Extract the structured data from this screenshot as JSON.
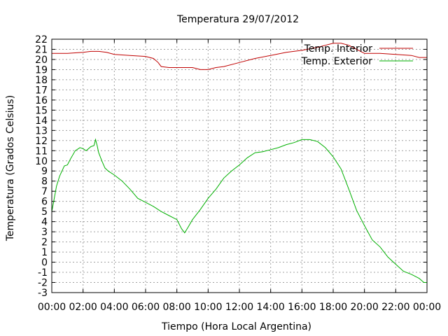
{
  "chart_data": {
    "type": "line",
    "title": "Temperatura 29/07/2012",
    "xlabel": "Tiempo (Hora Local Argentina)",
    "ylabel": "Temperatura (Grados Celsius)",
    "xlim": [
      0,
      24
    ],
    "ylim": [
      -3,
      22
    ],
    "x_ticks": [
      "00:00",
      "02:00",
      "04:00",
      "06:00",
      "08:00",
      "10:00",
      "12:00",
      "14:00",
      "16:00",
      "18:00",
      "20:00",
      "22:00",
      "00:00"
    ],
    "y_ticks": [
      -3,
      -2,
      -1,
      0,
      1,
      2,
      3,
      4,
      5,
      6,
      7,
      8,
      9,
      10,
      11,
      12,
      13,
      14,
      15,
      16,
      17,
      18,
      19,
      20,
      21,
      22
    ],
    "grid": true,
    "legend_position": "top-right",
    "series": [
      {
        "name": "Temp. Interior",
        "color": "#c00000",
        "x": [
          0,
          1,
          2,
          2.5,
          3,
          3.5,
          4,
          5,
          6,
          6.5,
          6.8,
          7,
          7.5,
          8,
          8.5,
          9,
          9.5,
          10,
          10.5,
          11,
          12,
          13,
          14,
          15,
          16,
          17,
          17.5,
          18,
          18.3,
          18.5,
          19,
          19.5,
          20,
          21,
          22,
          23,
          23.5,
          24
        ],
        "values": [
          20.6,
          20.6,
          20.7,
          20.8,
          20.8,
          20.7,
          20.5,
          20.4,
          20.3,
          20.1,
          19.7,
          19.3,
          19.2,
          19.2,
          19.2,
          19.2,
          19.0,
          19.0,
          19.2,
          19.3,
          19.7,
          20.1,
          20.4,
          20.7,
          20.9,
          21.2,
          21.4,
          21.6,
          21.6,
          21.6,
          21.4,
          21.0,
          20.6,
          20.6,
          20.5,
          20.4,
          20.2,
          20.2
        ]
      },
      {
        "name": "Temp. Exterior",
        "color": "#00b000",
        "x": [
          0,
          0.1,
          0.3,
          0.5,
          0.8,
          1,
          1.2,
          1.5,
          1.8,
          2,
          2.2,
          2.5,
          2.7,
          2.8,
          2.9,
          3,
          3.2,
          3.4,
          3.6,
          4,
          4.5,
          5,
          5.5,
          6,
          6.5,
          7,
          7.5,
          8,
          8.3,
          8.5,
          8.7,
          9,
          9.5,
          10,
          10.5,
          11,
          11.5,
          12,
          12.5,
          13,
          13.5,
          14,
          14.5,
          15,
          15.5,
          16,
          16.5,
          17,
          17.5,
          18,
          18.5,
          19,
          19.5,
          20,
          20.5,
          21,
          21.5,
          22,
          22.5,
          23,
          23.5,
          23.8,
          24
        ],
        "values": [
          5.0,
          5.8,
          7.5,
          8.5,
          9.5,
          9.6,
          10.2,
          11.0,
          11.3,
          11.2,
          11.0,
          11.4,
          11.5,
          12.1,
          11.5,
          10.8,
          10.0,
          9.3,
          9.0,
          8.6,
          8.0,
          7.2,
          6.3,
          5.9,
          5.5,
          5.0,
          4.6,
          4.2,
          3.3,
          2.9,
          3.4,
          4.2,
          5.2,
          6.3,
          7.2,
          8.3,
          9.0,
          9.6,
          10.3,
          10.8,
          10.9,
          11.1,
          11.3,
          11.6,
          11.8,
          12.1,
          12.1,
          11.9,
          11.3,
          10.4,
          9.2,
          7.2,
          5.1,
          3.6,
          2.2,
          1.5,
          0.5,
          -0.2,
          -0.9,
          -1.2,
          -1.6,
          -2.0,
          -2.0
        ]
      }
    ]
  }
}
